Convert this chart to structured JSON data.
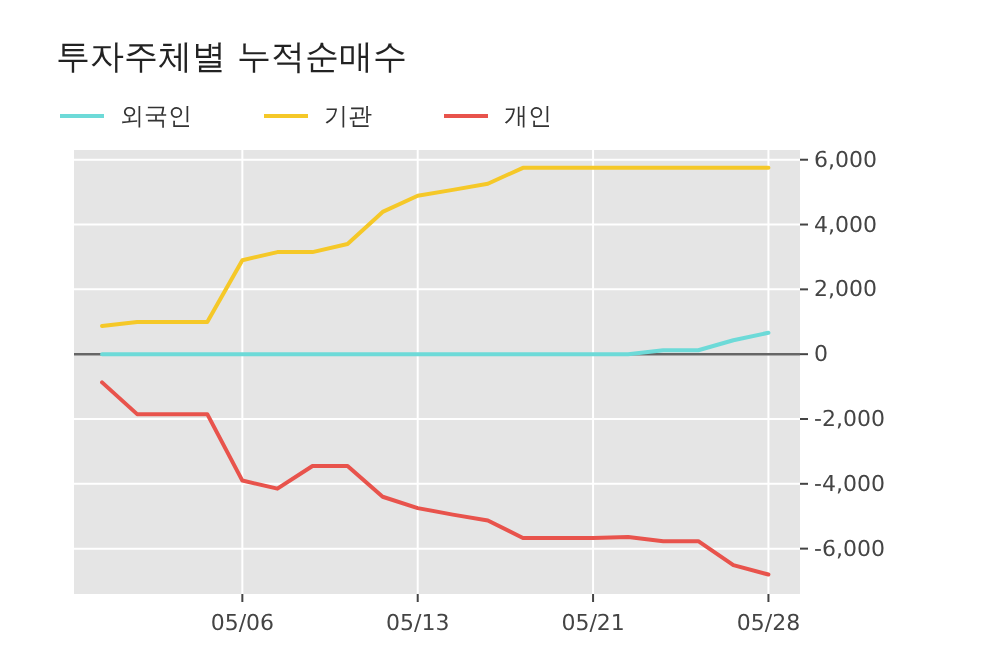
{
  "chart_data": {
    "type": "line",
    "title": "투자주체별 누적순매수",
    "categories": [
      null,
      null,
      null,
      null,
      "05/06",
      null,
      null,
      null,
      null,
      "05/13",
      null,
      null,
      null,
      null,
      "05/21",
      null,
      null,
      null,
      null,
      "05/28"
    ],
    "series": [
      {
        "name": "외국인",
        "color": "#6ddad8",
        "values": [
          0,
          0,
          0,
          0,
          0,
          0,
          0,
          0,
          0,
          0,
          0,
          0,
          0,
          0,
          0,
          0,
          120,
          120,
          430,
          660
        ]
      },
      {
        "name": "기관",
        "color": "#f5c828",
        "values": [
          870,
          990,
          990,
          990,
          2900,
          3150,
          3150,
          3400,
          4390,
          4890,
          5070,
          5260,
          5750,
          5750,
          5750,
          5750,
          5750,
          5750,
          5750,
          5750
        ]
      },
      {
        "name": "개인",
        "color": "#e8534c",
        "values": [
          -870,
          -1850,
          -1850,
          -1850,
          -3900,
          -4150,
          -3450,
          -3450,
          -4400,
          -4750,
          -4950,
          -5130,
          -5670,
          -5670,
          -5670,
          -5640,
          -5770,
          -5770,
          -6510,
          -6800
        ]
      }
    ],
    "ylim": [
      -7400,
      6300
    ],
    "yticks": [
      {
        "value": -6000,
        "label": "-6,000"
      },
      {
        "value": -4000,
        "label": "-4,000"
      },
      {
        "value": -2000,
        "label": "-2,000"
      },
      0,
      {
        "value": 2000,
        "label": "2,000"
      },
      {
        "value": 4000,
        "label": "4,000"
      },
      {
        "value": 6000,
        "label": "6,000"
      }
    ],
    "grid": true,
    "legend": "top left",
    "ref_lines": [
      {
        "axis": "y",
        "value": 0,
        "color": "#666666"
      }
    ]
  }
}
